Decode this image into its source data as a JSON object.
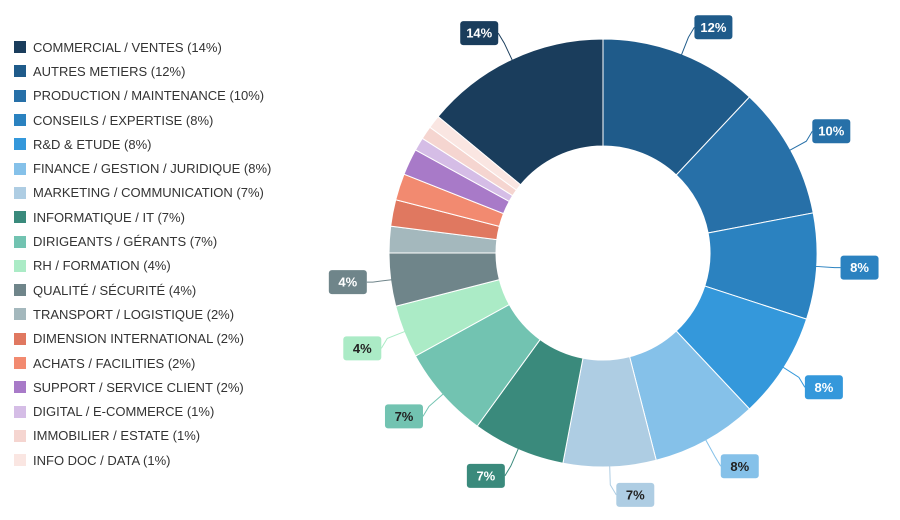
{
  "chart_data": {
    "type": "pie",
    "donut": true,
    "legend_position": "left",
    "slices": [
      {
        "label": "COMMERCIAL / VENTES (14%)",
        "value": 14,
        "data_label": "14%",
        "color": "#1a3d5c"
      },
      {
        "label": "AUTRES METIERS (12%)",
        "value": 12,
        "data_label": "12%",
        "color": "#1f5b8a"
      },
      {
        "label": "PRODUCTION / MAINTENANCE (10%)",
        "value": 10,
        "data_label": "10%",
        "color": "#2770a8"
      },
      {
        "label": "CONSEILS / EXPERTISE (8%)",
        "value": 8,
        "data_label": "8%",
        "color": "#2b82c0"
      },
      {
        "label": "R&D & ETUDE (8%)",
        "value": 8,
        "data_label": "8%",
        "color": "#3498db"
      },
      {
        "label": "FINANCE / GESTION / JURIDIQUE (8%)",
        "value": 8,
        "data_label": "8%",
        "color": "#85c1e9"
      },
      {
        "label": "MARKETING / COMMUNICATION (7%)",
        "value": 7,
        "data_label": "7%",
        "color": "#aecde3"
      },
      {
        "label": "INFORMATIQUE / IT (7%)",
        "value": 7,
        "data_label": "7%",
        "color": "#3a8a7c"
      },
      {
        "label": "DIRIGEANTS / GÉRANTS (7%)",
        "value": 7,
        "data_label": "7%",
        "color": "#72c3b1"
      },
      {
        "label": "RH / FORMATION (4%)",
        "value": 4,
        "data_label": "4%",
        "color": "#abebc6"
      },
      {
        "label": "QUALITÉ / SÉCURITÉ (4%)",
        "value": 4,
        "data_label": "4%",
        "color": "#6f858a"
      },
      {
        "label": "TRANSPORT / LOGISTIQUE (2%)",
        "value": 2,
        "data_label": "",
        "color": "#a4b8bd"
      },
      {
        "label": "DIMENSION INTERNATIONAL (2%)",
        "value": 2,
        "data_label": "",
        "color": "#e07860"
      },
      {
        "label": "ACHATS / FACILITIES (2%)",
        "value": 2,
        "data_label": "",
        "color": "#f28a70"
      },
      {
        "label": "SUPPORT / SERVICE CLIENT (2%)",
        "value": 2,
        "data_label": "",
        "color": "#a87ac8"
      },
      {
        "label": "DIGITAL / E-COMMERCE (1%)",
        "value": 1,
        "data_label": "",
        "color": "#d5bde6"
      },
      {
        "label": "IMMOBILIER / ESTATE (1%)",
        "value": 1,
        "data_label": "",
        "color": "#f5d5d0"
      },
      {
        "label": "INFO DOC / DATA (1%)",
        "value": 1,
        "data_label": "",
        "color": "#fae6e2"
      }
    ]
  }
}
